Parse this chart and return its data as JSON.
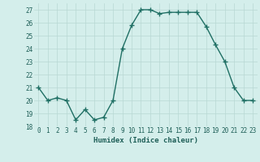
{
  "x": [
    0,
    1,
    2,
    3,
    4,
    5,
    6,
    7,
    8,
    9,
    10,
    11,
    12,
    13,
    14,
    15,
    16,
    17,
    18,
    19,
    20,
    21,
    22,
    23
  ],
  "y": [
    21,
    20,
    20.2,
    20,
    18.5,
    19.3,
    18.5,
    18.7,
    20,
    24,
    25.8,
    27,
    27,
    26.7,
    26.8,
    26.8,
    26.8,
    26.8,
    25.7,
    24.3,
    23,
    21,
    20,
    20
  ],
  "line_color": "#1f6f64",
  "marker": "+",
  "markersize": 4,
  "markeredgewidth": 1.0,
  "linewidth": 1.0,
  "bg_color": "#d4eeeb",
  "grid_color": "#b8d8d4",
  "xlabel": "Humidex (Indice chaleur)",
  "ylim": [
    18,
    27.5
  ],
  "xlim": [
    -0.5,
    23.5
  ],
  "yticks": [
    18,
    19,
    20,
    21,
    22,
    23,
    24,
    25,
    26,
    27
  ],
  "xticks": [
    0,
    1,
    2,
    3,
    4,
    5,
    6,
    7,
    8,
    9,
    10,
    11,
    12,
    13,
    14,
    15,
    16,
    17,
    18,
    19,
    20,
    21,
    22,
    23
  ],
  "tick_fontsize": 5.5,
  "xlabel_fontsize": 6.5,
  "label_color": "#1f5f58"
}
